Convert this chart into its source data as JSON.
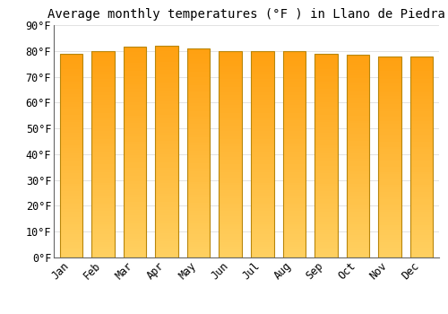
{
  "title": "Average monthly temperatures (°F ) in Llano de Piedra",
  "months": [
    "Jan",
    "Feb",
    "Mar",
    "Apr",
    "May",
    "Jun",
    "Jul",
    "Aug",
    "Sep",
    "Oct",
    "Nov",
    "Dec"
  ],
  "values": [
    79,
    80,
    81.5,
    82,
    81,
    80,
    80,
    80,
    79,
    78.5,
    78,
    78
  ],
  "ylim": [
    0,
    90
  ],
  "yticks": [
    0,
    10,
    20,
    30,
    40,
    50,
    60,
    70,
    80,
    90
  ],
  "ytick_labels": [
    "0°F",
    "10°F",
    "20°F",
    "30°F",
    "40°F",
    "50°F",
    "60°F",
    "70°F",
    "80°F",
    "90°F"
  ],
  "bar_color_bottom": "#FFD060",
  "bar_color_top": "#FFA010",
  "bar_edge_color": "#B8860B",
  "background_color": "#FFFFFF",
  "grid_color": "#DDDDDD",
  "title_fontsize": 10,
  "tick_fontsize": 8.5,
  "font_family": "monospace"
}
